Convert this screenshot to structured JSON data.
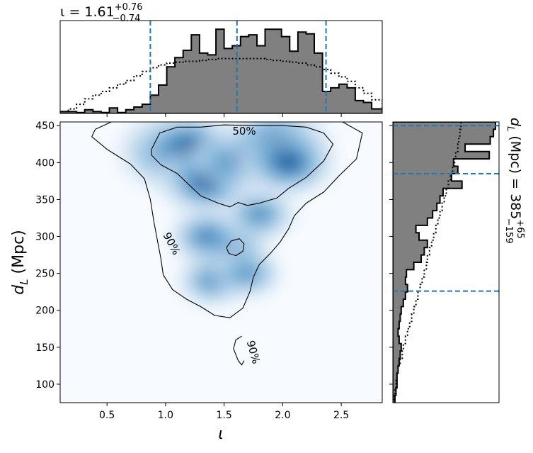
{
  "top_title": {
    "main": "ι = 1.61",
    "sup": "+0.76",
    "sub": "−0.74"
  },
  "right_title": {
    "main": "d",
    "main_sub": "L",
    "units": " (Mpc) = 385",
    "sup": "+65",
    "sub": "−159"
  },
  "xlabel": "ι",
  "ylabel_main": "d",
  "ylabel_sub": "L",
  "ylabel_units": " (Mpc)",
  "contour_labels": [
    "50%",
    "90%",
    "90%"
  ],
  "colors": {
    "hist_fill": "#808080",
    "quantile_line": "#1f77b4",
    "density_dark": "#08306b",
    "density_light": "#f7fbff"
  },
  "chart_data": [
    {
      "type": "heatmap",
      "title": "",
      "xlabel": "ι",
      "ylabel": "d_L (Mpc)",
      "xlim": [
        0.1,
        2.85
      ],
      "ylim": [
        75,
        455
      ],
      "xticks": [
        0.5,
        1.0,
        1.5,
        2.0,
        2.5
      ],
      "xtick_labels": [
        "0.5",
        "1.0",
        "1.5",
        "2.0",
        "2.5"
      ],
      "yticks": [
        100,
        150,
        200,
        250,
        300,
        350,
        400,
        450
      ],
      "ytick_labels": [
        "100",
        "150",
        "200",
        "250",
        "300",
        "350",
        "400",
        "450"
      ],
      "density_peaks": [
        {
          "x": 1.05,
          "y": 415,
          "w": 1.0
        },
        {
          "x": 1.2,
          "y": 420,
          "w": 0.8
        },
        {
          "x": 1.35,
          "y": 375,
          "w": 0.8
        },
        {
          "x": 1.6,
          "y": 405,
          "w": 0.55
        },
        {
          "x": 1.95,
          "y": 425,
          "w": 1.0
        },
        {
          "x": 2.05,
          "y": 400,
          "w": 0.75
        },
        {
          "x": 1.55,
          "y": 285,
          "w": 0.45
        },
        {
          "x": 1.35,
          "y": 300,
          "w": 0.35
        },
        {
          "x": 1.4,
          "y": 240,
          "w": 0.25
        },
        {
          "x": 1.7,
          "y": 250,
          "w": 0.2
        },
        {
          "x": 1.8,
          "y": 330,
          "w": 0.3
        }
      ],
      "contours": [
        {
          "level": "50%",
          "paths": [
            [
              [
                0.88,
                418
              ],
              [
                0.95,
                440
              ],
              [
                1.1,
                448
              ],
              [
                1.3,
                448
              ],
              [
                1.5,
                451
              ],
              [
                1.75,
                450
              ],
              [
                2.0,
                450
              ],
              [
                2.2,
                448
              ],
              [
                2.35,
                440
              ],
              [
                2.43,
                425
              ],
              [
                2.35,
                402
              ],
              [
                2.2,
                380
              ],
              [
                2.05,
                365
              ],
              [
                1.95,
                352
              ],
              [
                1.8,
                345
              ],
              [
                1.7,
                342
              ],
              [
                1.62,
                346
              ],
              [
                1.55,
                340
              ],
              [
                1.45,
                345
              ],
              [
                1.3,
                355
              ],
              [
                1.2,
                370
              ],
              [
                1.1,
                385
              ],
              [
                0.96,
                397
              ],
              [
                0.88,
                410
              ],
              [
                0.88,
                418
              ]
            ],
            [
              [
                1.52,
                285
              ],
              [
                1.56,
                294
              ],
              [
                1.63,
                297
              ],
              [
                1.67,
                290
              ],
              [
                1.66,
                280
              ],
              [
                1.6,
                274
              ],
              [
                1.54,
                277
              ],
              [
                1.52,
                285
              ]
            ]
          ]
        },
        {
          "level": "90%",
          "paths": [
            [
              [
                0.4,
                445
              ],
              [
                0.55,
                456
              ],
              [
                1.2,
                456
              ],
              [
                2.0,
                456
              ],
              [
                2.5,
                456
              ],
              [
                2.68,
                440
              ],
              [
                2.63,
                405
              ],
              [
                2.48,
                382
              ],
              [
                2.35,
                360
              ],
              [
                2.2,
                345
              ],
              [
                2.1,
                328
              ],
              [
                2.05,
                310
              ],
              [
                1.98,
                293
              ],
              [
                1.9,
                278
              ],
              [
                1.8,
                262
              ],
              [
                1.75,
                245
              ],
              [
                1.72,
                225
              ],
              [
                1.66,
                203
              ],
              [
                1.55,
                190
              ],
              [
                1.42,
                193
              ],
              [
                1.3,
                205
              ],
              [
                1.18,
                215
              ],
              [
                1.06,
                228
              ],
              [
                0.98,
                248
              ],
              [
                0.96,
                270
              ],
              [
                0.93,
                295
              ],
              [
                0.9,
                320
              ],
              [
                0.87,
                350
              ],
              [
                0.82,
                378
              ],
              [
                0.7,
                398
              ],
              [
                0.5,
                418
              ],
              [
                0.37,
                435
              ],
              [
                0.4,
                445
              ]
            ],
            [
              [
                1.65,
                165
              ],
              [
                1.6,
                160
              ],
              [
                1.58,
                148
              ],
              [
                1.62,
                132
              ],
              [
                1.65,
                126
              ],
              [
                1.67,
                132
              ]
            ]
          ]
        }
      ]
    },
    {
      "type": "bar",
      "title": "ι = 1.61 (+0.76, −0.74)",
      "xlabel": "ι",
      "ylabel": "",
      "xlim": [
        0.1,
        2.85
      ],
      "bin_edges": [
        0.1,
        0.17,
        0.24,
        0.31,
        0.38,
        0.45,
        0.52,
        0.59,
        0.66,
        0.73,
        0.8,
        0.87,
        0.94,
        1.01,
        1.08,
        1.15,
        1.22,
        1.29,
        1.36,
        1.43,
        1.5,
        1.57,
        1.64,
        1.71,
        1.78,
        1.85,
        1.92,
        1.99,
        2.06,
        2.13,
        2.2,
        2.27,
        2.34,
        2.41,
        2.48,
        2.55,
        2.62,
        2.69,
        2.76,
        2.85
      ],
      "series": [
        {
          "style": "filled",
          "values": [
            0.02,
            0.02,
            0.01,
            0.04,
            0.02,
            0.01,
            0.06,
            0.01,
            0.04,
            0.07,
            0.1,
            0.2,
            0.31,
            0.51,
            0.61,
            0.69,
            0.86,
            0.66,
            0.64,
            0.92,
            0.71,
            0.74,
            0.84,
            0.86,
            0.74,
            0.92,
            0.92,
            0.84,
            0.68,
            0.89,
            0.87,
            0.66,
            0.24,
            0.28,
            0.32,
            0.28,
            0.14,
            0.12,
            0.05
          ]
        },
        {
          "style": "dotted",
          "values": [
            0.02,
            0.05,
            0.1,
            0.16,
            0.2,
            0.24,
            0.28,
            0.32,
            0.36,
            0.41,
            0.46,
            0.5,
            0.53,
            0.55,
            0.56,
            0.57,
            0.57,
            0.58,
            0.59,
            0.6,
            0.6,
            0.6,
            0.6,
            0.6,
            0.6,
            0.59,
            0.58,
            0.57,
            0.56,
            0.55,
            0.53,
            0.51,
            0.48,
            0.44,
            0.4,
            0.35,
            0.28,
            0.22,
            0.15
          ]
        }
      ],
      "quantiles": [
        0.87,
        1.61,
        2.37
      ]
    },
    {
      "type": "bar",
      "title": "d_L (Mpc) = 385 (+65, −159)",
      "xlabel": "",
      "ylabel": "d_L (Mpc)",
      "ylim": [
        75,
        455
      ],
      "bin_edges": [
        75,
        85,
        95,
        105,
        115,
        125,
        135,
        145,
        155,
        165,
        175,
        185,
        195,
        205,
        215,
        225,
        235,
        245,
        255,
        265,
        275,
        285,
        295,
        305,
        315,
        325,
        335,
        345,
        355,
        365,
        375,
        385,
        395,
        405,
        415,
        425,
        435,
        445,
        455
      ],
      "series": [
        {
          "style": "filled",
          "values": [
            0.02,
            0.03,
            0.04,
            0.04,
            0.05,
            0.06,
            0.07,
            0.08,
            0.06,
            0.05,
            0.06,
            0.07,
            0.08,
            0.1,
            0.12,
            0.14,
            0.12,
            0.13,
            0.2,
            0.27,
            0.3,
            0.33,
            0.25,
            0.22,
            0.33,
            0.38,
            0.42,
            0.45,
            0.48,
            0.66,
            0.56,
            0.62,
            0.58,
            0.92,
            0.69,
            0.93,
            0.96,
            0.98
          ]
        },
        {
          "style": "dotted",
          "values": [
            0.01,
            0.02,
            0.03,
            0.04,
            0.05,
            0.07,
            0.09,
            0.1,
            0.12,
            0.14,
            0.16,
            0.18,
            0.2,
            0.22,
            0.24,
            0.26,
            0.28,
            0.3,
            0.32,
            0.33,
            0.35,
            0.37,
            0.39,
            0.41,
            0.43,
            0.45,
            0.47,
            0.49,
            0.51,
            0.53,
            0.55,
            0.57,
            0.59,
            0.6,
            0.62,
            0.63,
            0.64,
            0.65
          ]
        }
      ],
      "quantiles": [
        226,
        385,
        450
      ]
    }
  ]
}
